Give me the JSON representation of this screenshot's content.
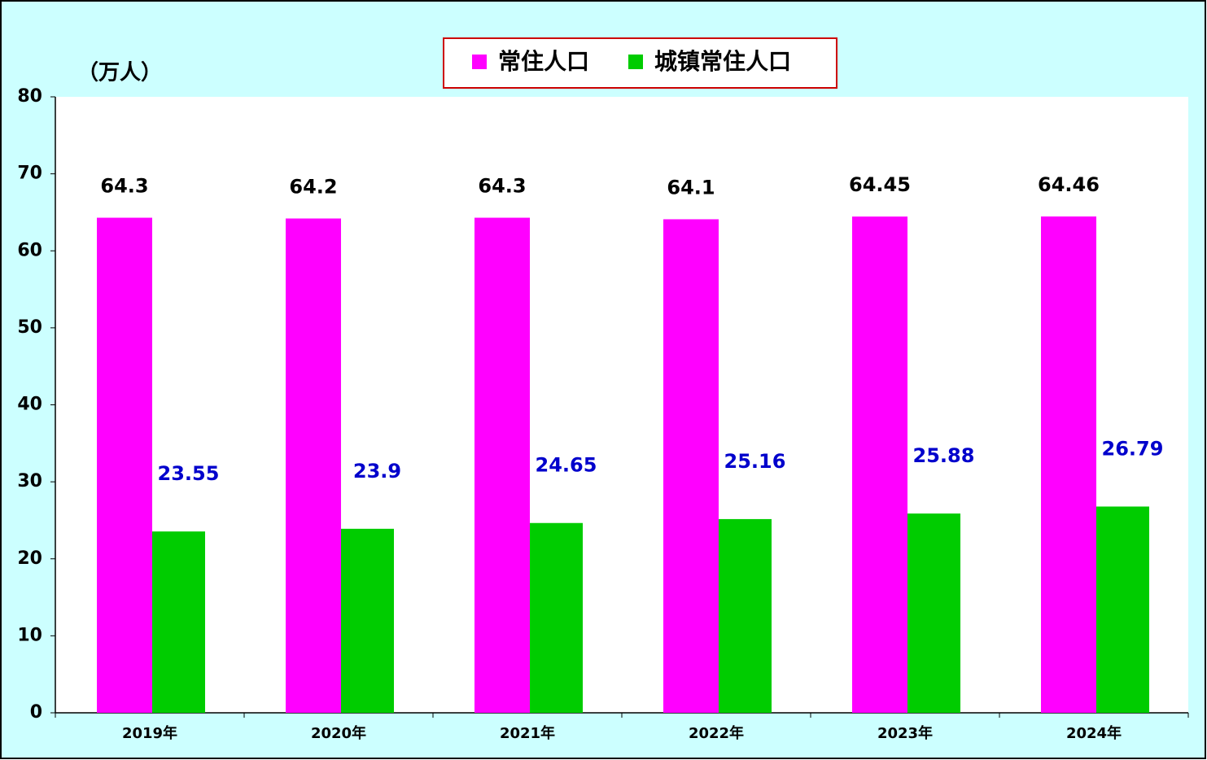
{
  "chart_data": {
    "type": "bar",
    "y_axis_label": "（万人）",
    "categories": [
      "2019年",
      "2020年",
      "2021年",
      "2022年",
      "2023年",
      "2024年"
    ],
    "series": [
      {
        "name": "常住人口",
        "color": "#ff00ff",
        "label_color": "#000000",
        "values": [
          64.3,
          64.2,
          64.3,
          64.1,
          64.45,
          64.46
        ]
      },
      {
        "name": "城镇常住人口",
        "color": "#00cc00",
        "label_color": "#0000cc",
        "values": [
          23.55,
          23.9,
          24.65,
          25.16,
          25.88,
          26.79
        ]
      }
    ],
    "ylim": [
      0,
      80
    ],
    "yticks": [
      0,
      10,
      20,
      30,
      40,
      50,
      60,
      70,
      80
    ],
    "grid": false,
    "legend": "top"
  }
}
